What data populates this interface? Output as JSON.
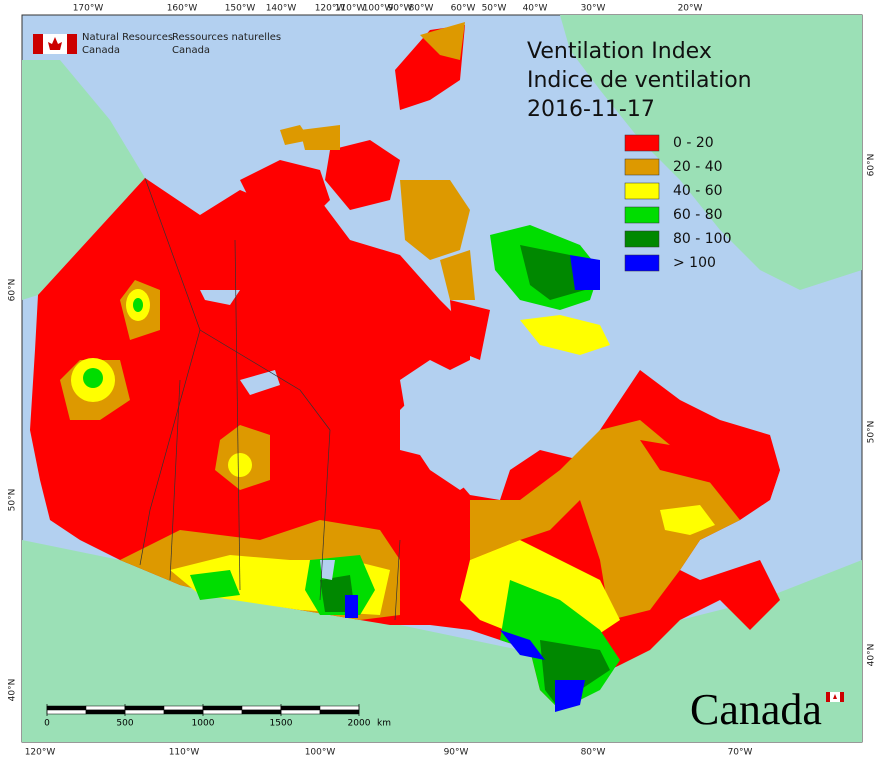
{
  "header": {
    "agency_en": [
      "Natural Resources",
      "Canada"
    ],
    "agency_fr": [
      "Ressources naturelles",
      "Canada"
    ]
  },
  "title": [
    "Ventilation Index",
    "Indice de ventilation",
    "2016-11-17"
  ],
  "legend": [
    {
      "label": "0 - 20",
      "color": "#ff0000"
    },
    {
      "label": "20 - 40",
      "color": "#dd9900"
    },
    {
      "label": "40 - 60",
      "color": "#ffff00"
    },
    {
      "label": "60 - 80",
      "color": "#00dd00"
    },
    {
      "label": "80 - 100",
      "color": "#008800"
    },
    {
      "label": "> 100",
      "color": "#0000ff"
    }
  ],
  "graticule": {
    "top": [
      "170°W",
      "160°W",
      "150°W",
      "140°W",
      "120°W",
      "110°W",
      "100°W",
      "90°W",
      "80°W",
      "60°W",
      "50°W",
      "40°W",
      "30°W",
      "20°W"
    ],
    "bottom": [
      "120°W",
      "110°W",
      "100°W",
      "90°W",
      "80°W",
      "70°W"
    ],
    "left": [
      "60°N",
      "50°N",
      "40°N"
    ],
    "right": [
      "60°N",
      "50°N",
      "40°N"
    ]
  },
  "scale": {
    "ticks": [
      0,
      500,
      1000,
      1500,
      2000
    ],
    "unit": "km"
  },
  "wordmark": "Canada"
}
